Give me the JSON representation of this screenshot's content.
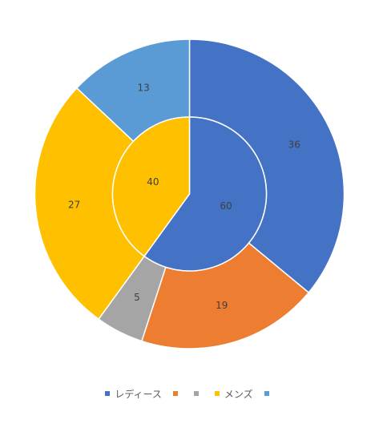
{
  "chart_data": {
    "type": "donut",
    "rings": [
      {
        "ring": "inner",
        "slices": [
          {
            "label": "",
            "value": 60,
            "color": "#4472C4"
          },
          {
            "label": "",
            "value": 40,
            "color": "#FFC000"
          }
        ]
      },
      {
        "ring": "outer",
        "slices": [
          {
            "label": "",
            "value": 36,
            "color": "#4472C4"
          },
          {
            "label": "",
            "value": 19,
            "color": "#ED7D31"
          },
          {
            "label": "",
            "value": 5,
            "color": "#A5A5A5"
          },
          {
            "label": "",
            "value": 27,
            "color": "#FFC000"
          },
          {
            "label": "",
            "value": 13,
            "color": "#5B9BD5"
          }
        ]
      }
    ],
    "legend": {
      "position": "bottom",
      "entries": [
        {
          "label": "レディース",
          "color": "#4472C4"
        },
        {
          "label": "",
          "color": "#ED7D31"
        },
        {
          "label": "",
          "color": "#A5A5A5"
        },
        {
          "label": "メンズ",
          "color": "#FFC000"
        },
        {
          "label": "",
          "color": "#5B9BD5"
        }
      ]
    }
  }
}
